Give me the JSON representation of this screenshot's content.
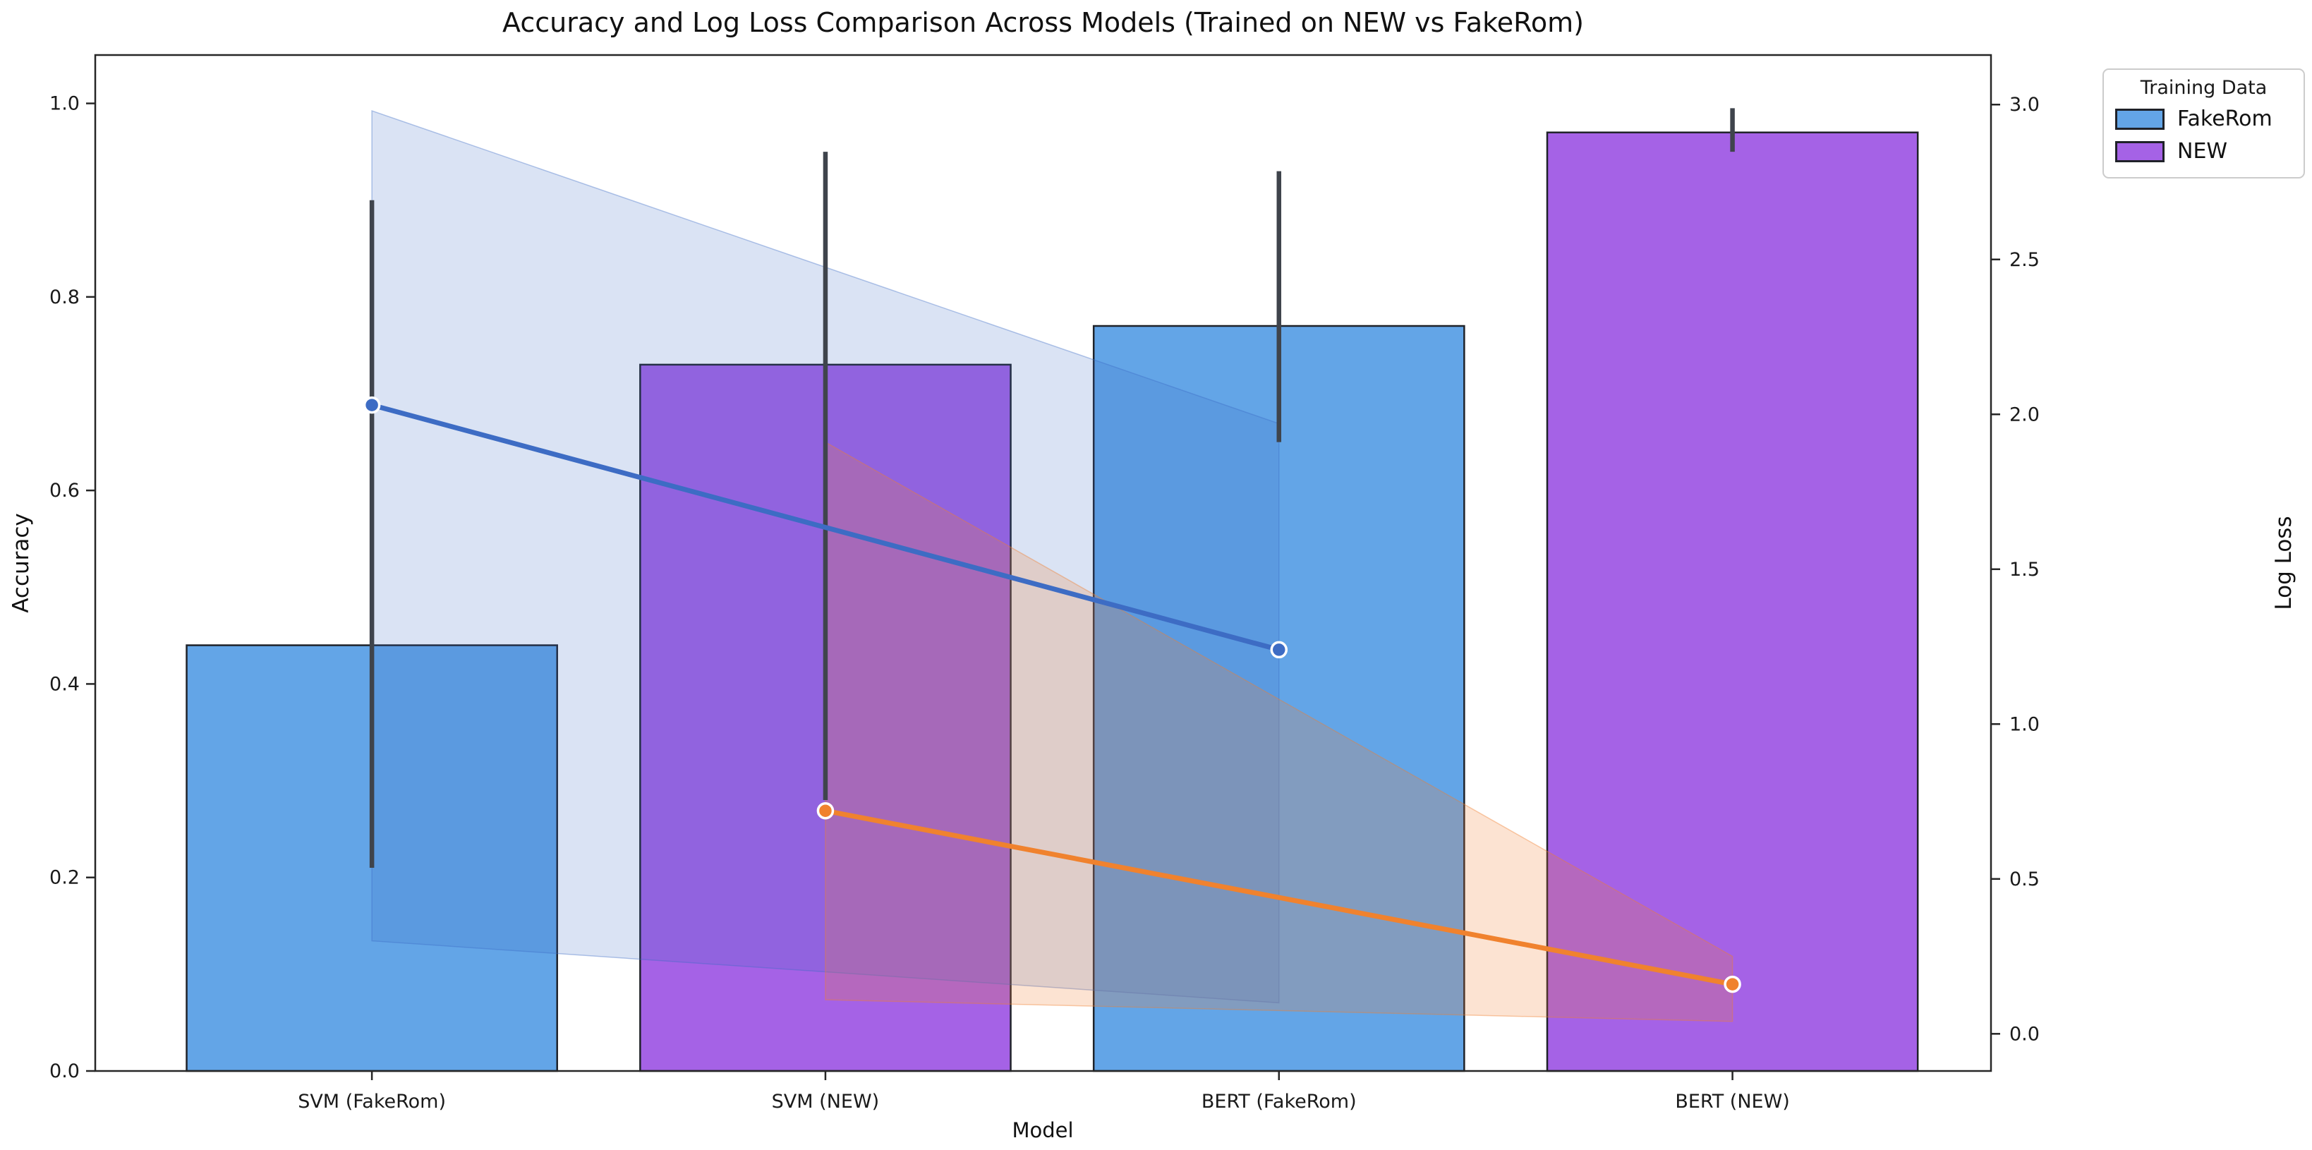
{
  "title": "Accuracy and Log Loss Comparison Across Models (Trained on NEW vs FakeRom)",
  "axes": {
    "x": {
      "label": "Model",
      "range": [
        -0.61,
        3.57
      ]
    },
    "left": {
      "label": "Accuracy",
      "ticks": [
        "0.0",
        "0.2",
        "0.4",
        "0.6",
        "0.8",
        "1.0"
      ],
      "range": [
        0,
        1.05
      ]
    },
    "right": {
      "label": "Log Loss",
      "ticks": [
        "0.0",
        "0.5",
        "1.0",
        "1.5",
        "2.0",
        "2.5",
        "3.0"
      ],
      "range": [
        -0.12,
        3.16
      ]
    }
  },
  "legend": {
    "title": "Training Data",
    "entries": [
      {
        "label": "FakeRom",
        "color": "#63a5e7"
      },
      {
        "label": "NEW",
        "color": "#a562e6"
      }
    ]
  },
  "chart_data": {
    "type": "bar+line",
    "title": "Accuracy and Log Loss Comparison Across Models (Trained on NEW vs FakeRom)",
    "xlabel": "Model",
    "ylabel_left": "Accuracy",
    "ylabel_right": "Log Loss",
    "ylim_left": [
      0,
      1.05
    ],
    "ylim_right": [
      -0.12,
      3.16
    ],
    "grid": false,
    "legend_position": "upper right, outside axes",
    "categories": [
      "SVM (FakeRom)",
      "SVM (NEW)",
      "BERT (FakeRom)",
      "BERT (NEW)"
    ],
    "bar_series": {
      "name": "Accuracy",
      "axis": "left",
      "bars": [
        {
          "category": "SVM (FakeRom)",
          "training_data": "FakeRom",
          "value": 0.44,
          "ci": [
            0.21,
            0.9
          ]
        },
        {
          "category": "SVM (NEW)",
          "training_data": "NEW",
          "value": 0.73,
          "ci": [
            0.28,
            0.95
          ]
        },
        {
          "category": "BERT (FakeRom)",
          "training_data": "FakeRom",
          "value": 0.77,
          "ci": [
            0.65,
            0.93
          ]
        },
        {
          "category": "BERT (NEW)",
          "training_data": "NEW",
          "value": 0.97,
          "ci": [
            0.95,
            0.995
          ]
        }
      ]
    },
    "line_series": [
      {
        "name": "Log Loss (trained on FakeRom)",
        "axis": "right",
        "color": "#3d6cc4",
        "band_color": "rgba(61,108,196,0.19)",
        "band_edge_color": "rgba(61,108,196,0.38)",
        "points": [
          {
            "x": 0,
            "value": 2.03
          },
          {
            "x": 2,
            "value": 1.24
          }
        ],
        "band": [
          {
            "x": 0,
            "lo": 0.3,
            "hi": 2.98
          },
          {
            "x": 2,
            "lo": 0.1,
            "hi": 1.97
          }
        ]
      },
      {
        "name": "Log Loss (trained on NEW)",
        "axis": "right",
        "color": "#f0822e",
        "band_color": "rgba(240,128,48,0.22)",
        "band_edge_color": "rgba(240,128,48,0.40)",
        "points": [
          {
            "x": 1,
            "value": 0.72
          },
          {
            "x": 3,
            "value": 0.16
          }
        ],
        "band": [
          {
            "x": 1,
            "lo": 0.11,
            "hi": 1.91
          },
          {
            "x": 3,
            "lo": 0.04,
            "hi": 0.25
          }
        ]
      }
    ],
    "styles": {
      "bar_edge": "#1f2229",
      "error_bar": "#3f444c",
      "spine": "#262626",
      "tick_text": "#1a1a1a",
      "marker_edge": "#ffffff"
    }
  }
}
